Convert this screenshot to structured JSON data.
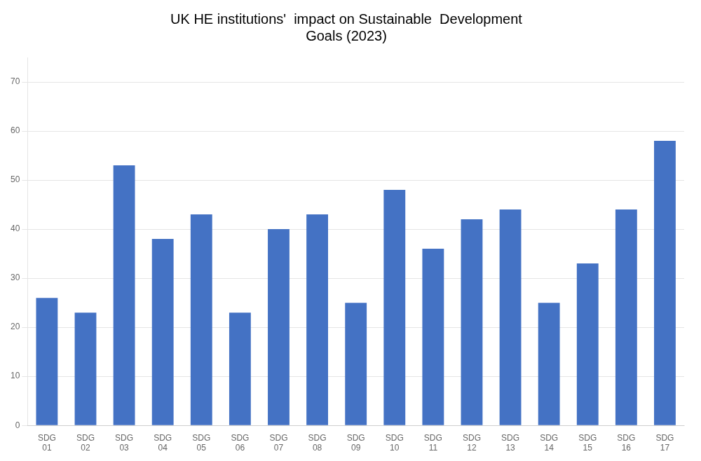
{
  "chart_data": {
    "type": "bar",
    "title": "UK HE institutions'  impact on Sustainable  Development\nGoals (2023)",
    "categories": [
      "SDG\n01",
      "SDG\n02",
      "SDG\n03",
      "SDG\n04",
      "SDG\n05",
      "SDG\n06",
      "SDG\n07",
      "SDG\n08",
      "SDG\n09",
      "SDG\n10",
      "SDG\n11",
      "SDG\n12",
      "SDG\n13",
      "SDG\n14",
      "SDG\n15",
      "SDG\n16",
      "SDG\n17"
    ],
    "values": [
      26,
      23,
      53,
      38,
      43,
      23,
      40,
      43,
      25,
      48,
      36,
      42,
      44,
      25,
      33,
      44,
      58
    ],
    "color": "#4472c4",
    "ylim": [
      0,
      75
    ],
    "yticks": [
      0,
      10,
      20,
      30,
      40,
      50,
      60,
      70
    ],
    "grid": true
  }
}
